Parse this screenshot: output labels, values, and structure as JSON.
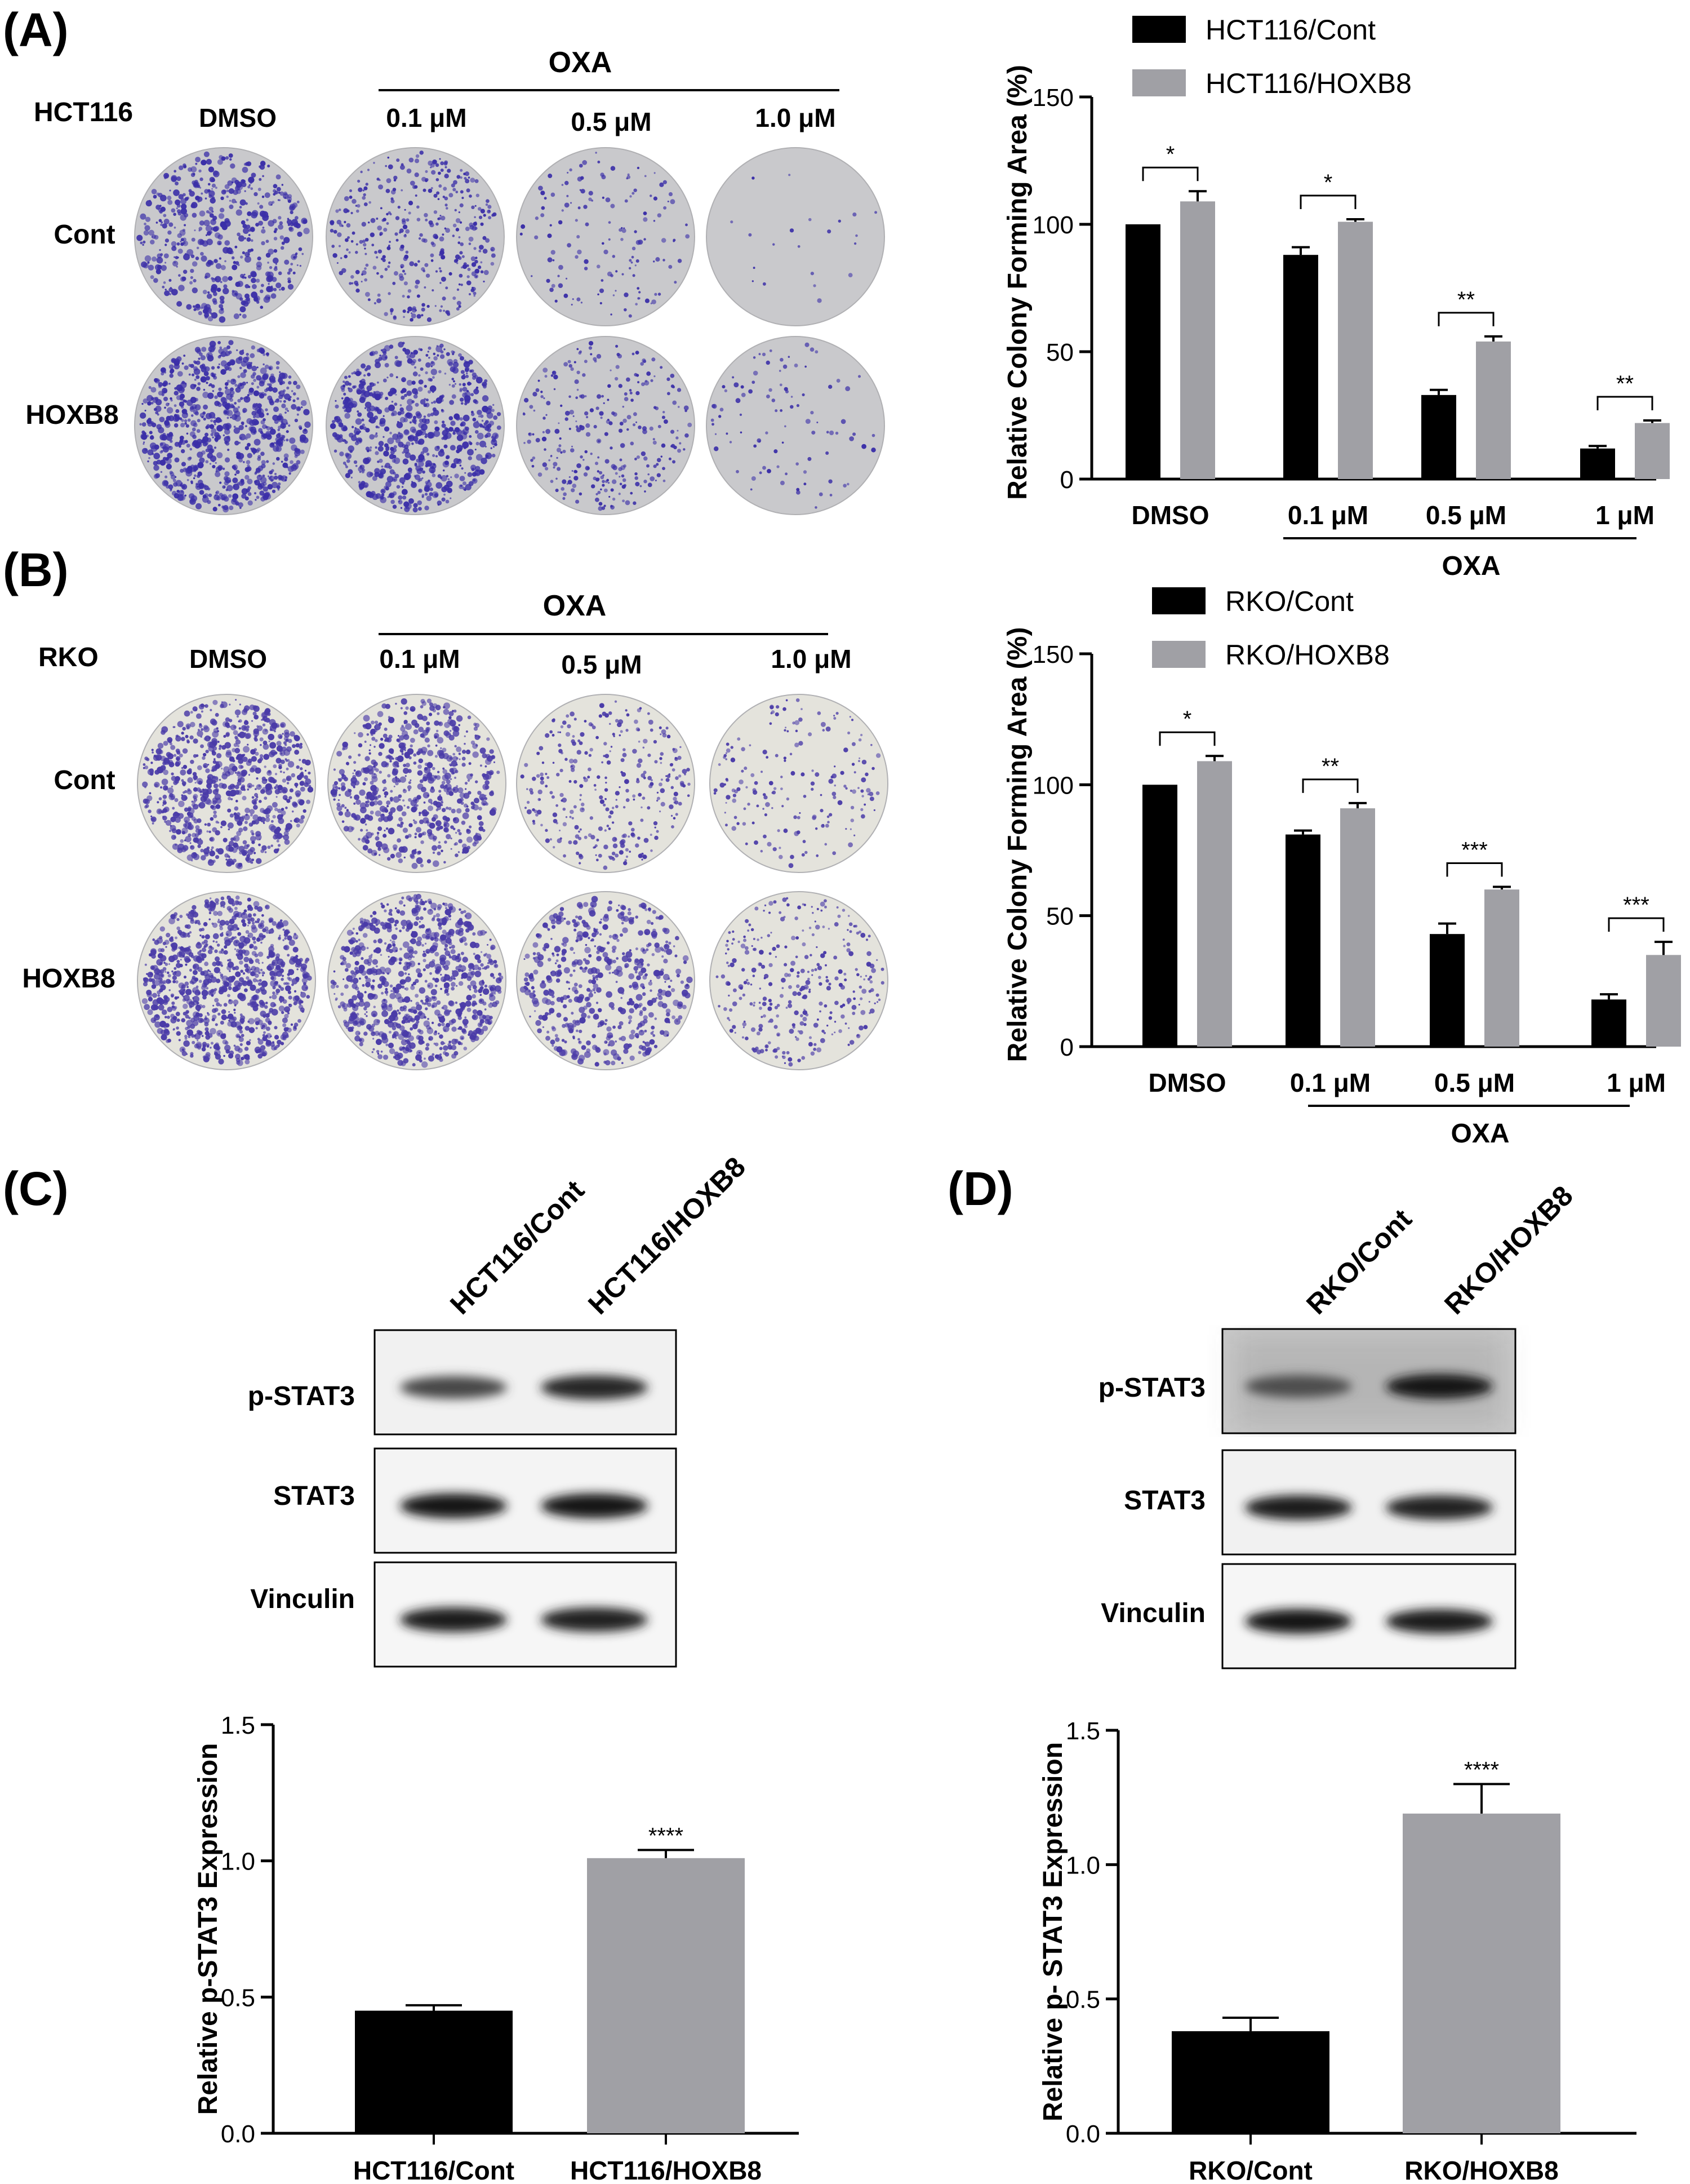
{
  "panels": {
    "a": {
      "letter": "(A)",
      "cell_line": "HCT116",
      "drug_label": "OXA",
      "columns": [
        "DMSO",
        "0.1 μM",
        "0.5 μM",
        "1.0 μM"
      ],
      "rows": [
        "Cont",
        "HOXB8"
      ],
      "colony_density": [
        [
          1.0,
          0.75,
          0.28,
          0.04
        ],
        [
          1.6,
          1.35,
          0.55,
          0.18
        ]
      ],
      "dish_color": "#c9c9cc",
      "colony_color": "#3b2fa8"
    },
    "b": {
      "letter": "(B)",
      "cell_line": "RKO",
      "drug_label": "OXA",
      "columns": [
        "DMSO",
        "0.1 μM",
        "0.5 μM",
        "1.0 μM"
      ],
      "rows": [
        "Cont",
        "HOXB8"
      ],
      "colony_density": [
        [
          1.5,
          1.25,
          0.6,
          0.35
        ],
        [
          1.75,
          1.6,
          1.0,
          0.6
        ]
      ],
      "dish_color": "#e4e3dc",
      "colony_color": "#4a3ba8"
    },
    "c": {
      "letter": "(C)",
      "lanes": [
        "HCT116/Cont",
        "HCT116/HOXB8"
      ],
      "blots": [
        {
          "label": "p-STAT3",
          "intensities": [
            0.72,
            0.85
          ],
          "background": 0.08
        },
        {
          "label": "STAT3",
          "intensities": [
            0.9,
            0.9
          ],
          "background": 0.06
        },
        {
          "label": "Vinculin",
          "intensities": [
            0.88,
            0.86
          ],
          "background": 0.05
        }
      ]
    },
    "d": {
      "letter": "(D)",
      "lanes": [
        "RKO/Cont",
        "RKO/HOXB8"
      ],
      "blots": [
        {
          "label": "p-STAT3",
          "intensities": [
            0.7,
            0.9
          ],
          "background": 0.3
        },
        {
          "label": "STAT3",
          "intensities": [
            0.88,
            0.86
          ],
          "background": 0.08
        },
        {
          "label": "Vinculin",
          "intensities": [
            0.9,
            0.88
          ],
          "background": 0.05
        }
      ]
    }
  },
  "colors": {
    "cont": "#000000",
    "hoxb8": "#a0a0a5",
    "axis": "#000000"
  },
  "chart_data": [
    {
      "id": "a-bar",
      "type": "bar",
      "categories": [
        "DMSO",
        "0.1 μM",
        "0.5 μM",
        "1 μM"
      ],
      "group_label": "OXA",
      "ylabel": "Relative Colony Forming Area (%)",
      "ylim": [
        0,
        150
      ],
      "yticks": [
        0,
        50,
        100,
        150
      ],
      "legend_placement": "top",
      "series": [
        {
          "name": "HCT116/Cont",
          "values": [
            100,
            88,
            33,
            12
          ],
          "errors": [
            0,
            3,
            2,
            1
          ]
        },
        {
          "name": "HCT116/HOXB8",
          "values": [
            109,
            101,
            54,
            22
          ],
          "errors": [
            4,
            1,
            2,
            1
          ]
        }
      ],
      "significance": [
        "*",
        "*",
        "**",
        "**"
      ]
    },
    {
      "id": "b-bar",
      "type": "bar",
      "categories": [
        "DMSO",
        "0.1 μM",
        "0.5 μM",
        "1 μM"
      ],
      "group_label": "OXA",
      "ylabel": "Relative Colony Forming Area (%)",
      "ylim": [
        0,
        150
      ],
      "yticks": [
        0,
        50,
        100,
        150
      ],
      "legend_placement": "top",
      "series": [
        {
          "name": "RKO/Cont",
          "values": [
            100,
            81,
            43,
            18
          ],
          "errors": [
            0,
            1.5,
            4,
            2
          ]
        },
        {
          "name": "RKO/HOXB8",
          "values": [
            109,
            91,
            60,
            35
          ],
          "errors": [
            2,
            2,
            1,
            5
          ]
        }
      ],
      "significance": [
        "*",
        "**",
        "***",
        "***"
      ]
    },
    {
      "id": "c-bar",
      "type": "bar",
      "categories": [
        "HCT116/Cont",
        "HCT116/HOXB8"
      ],
      "ylabel": "Relative p-STAT3 Expression",
      "ylim": [
        0,
        1.5
      ],
      "yticks": [
        0.0,
        0.5,
        1.0,
        1.5
      ],
      "values": [
        0.45,
        1.01
      ],
      "errors": [
        0.02,
        0.03
      ],
      "significance": "****"
    },
    {
      "id": "d-bar",
      "type": "bar",
      "categories": [
        "RKO/Cont",
        "RKO/HOXB8"
      ],
      "ylabel": "Relative p- STAT3 Expression",
      "ylim": [
        0,
        1.5
      ],
      "yticks": [
        0.0,
        0.5,
        1.0,
        1.5
      ],
      "values": [
        0.38,
        1.19
      ],
      "errors": [
        0.05,
        0.11
      ],
      "significance": "****"
    }
  ]
}
